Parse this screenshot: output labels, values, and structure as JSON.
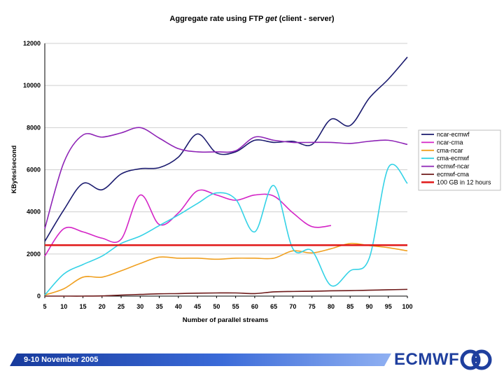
{
  "chart_data": {
    "type": "line",
    "title_parts": [
      "Aggregate rate using FTP ",
      "get",
      " (client - server)"
    ],
    "xlabel": "Number of parallel streams",
    "ylabel": "KBytes/second",
    "x": [
      5,
      10,
      15,
      20,
      25,
      30,
      35,
      40,
      45,
      50,
      55,
      60,
      65,
      70,
      75,
      80,
      85,
      90,
      95,
      100
    ],
    "xlim": [
      5,
      100
    ],
    "ylim": [
      0,
      12000
    ],
    "yticks": [
      0,
      2000,
      4000,
      6000,
      8000,
      10000,
      12000
    ],
    "xticks": [
      5,
      10,
      15,
      20,
      25,
      30,
      35,
      40,
      45,
      50,
      55,
      60,
      65,
      70,
      75,
      80,
      85,
      90,
      95,
      100
    ],
    "series": [
      {
        "name": "ncar-ecmwf",
        "color": "#1a1a6e",
        "values": [
          2600,
          4100,
          5350,
          5050,
          5800,
          6050,
          6100,
          6600,
          7700,
          6800,
          6850,
          7400,
          7300,
          7350,
          7200,
          8400,
          8100,
          9400,
          10300,
          11350
        ]
      },
      {
        "name": "ncar-cma",
        "color": "#d424c6",
        "values": [
          1900,
          3200,
          3050,
          2750,
          2700,
          4800,
          3400,
          3950,
          5000,
          4800,
          4550,
          4800,
          4750,
          3950,
          3300,
          3350,
          null,
          null,
          null,
          null
        ]
      },
      {
        "name": "cma-ncar",
        "color": "#f0a020",
        "values": [
          50,
          350,
          900,
          900,
          1200,
          1550,
          1850,
          1800,
          1800,
          1750,
          1800,
          1800,
          1800,
          2150,
          2050,
          2250,
          2500,
          2400,
          2300,
          2150
        ]
      },
      {
        "name": "cma-ecmwf",
        "color": "#34d2e6",
        "values": [
          50,
          1050,
          1500,
          1900,
          2500,
          2850,
          3350,
          3850,
          4400,
          4900,
          4600,
          3050,
          5250,
          2250,
          2150,
          500,
          1200,
          1800,
          6100,
          5350
        ]
      },
      {
        "name": "ecmwf-ncar",
        "color": "#8e24b6",
        "values": [
          3200,
          6350,
          7650,
          7550,
          7750,
          8000,
          7500,
          7000,
          6850,
          6850,
          6900,
          7550,
          7400,
          7300,
          7300,
          7300,
          7250,
          7350,
          7400,
          7200
        ]
      },
      {
        "name": "ecmwf-cma",
        "color": "#6e1a1a",
        "values": [
          0,
          0,
          0,
          10,
          50,
          80,
          110,
          120,
          140,
          150,
          150,
          120,
          200,
          220,
          230,
          250,
          260,
          280,
          300,
          320
        ]
      },
      {
        "name": "100 GB in 12 hours",
        "color": "#e01818",
        "constant": 2420
      }
    ]
  },
  "footer": {
    "date": "9-10 November 2005",
    "logo_text": "ECMWF"
  }
}
